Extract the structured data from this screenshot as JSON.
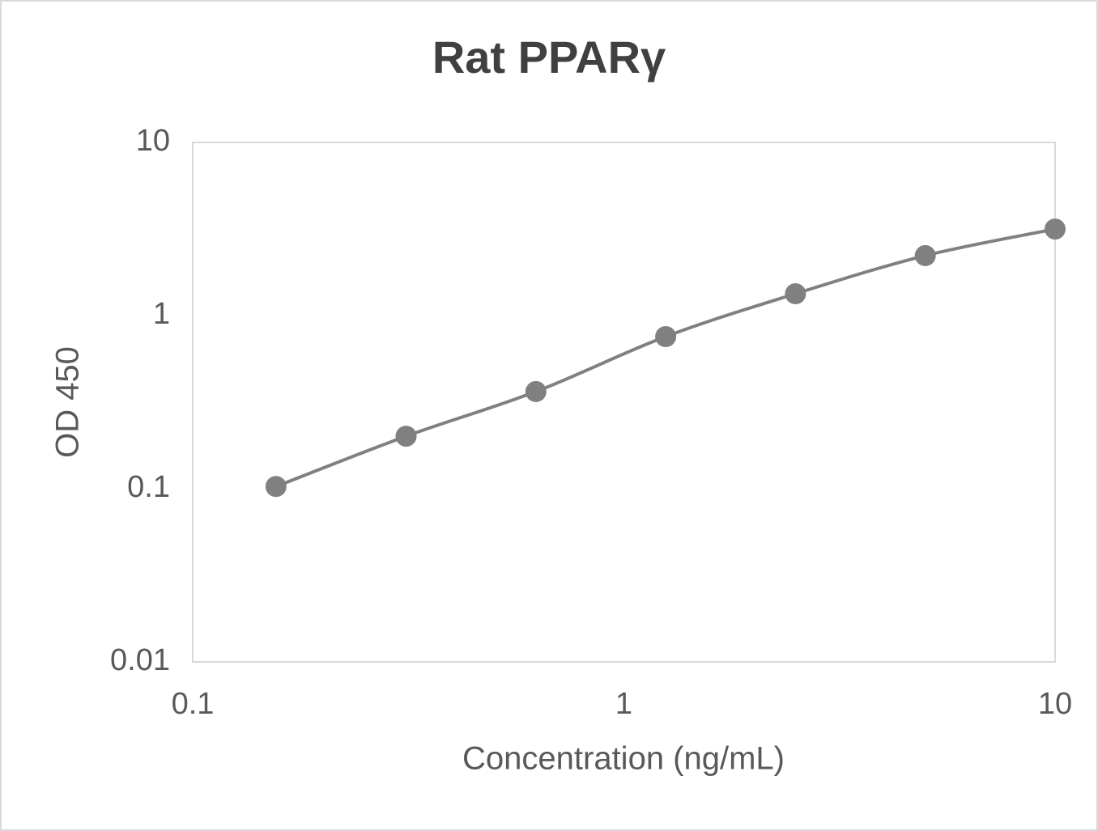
{
  "chart_data": {
    "type": "scatter",
    "title": "Rat PPARγ",
    "x_label": "Concentration (ng/mL)",
    "y_label": "OD 450",
    "x_log": true,
    "y_log": true,
    "smooth_line": true,
    "series": [
      {
        "color": "#808080",
        "x": [
          0.156,
          0.3125,
          0.625,
          1.25,
          2.5,
          5,
          10
        ],
        "values": [
          0.103,
          0.201,
          0.364,
          0.756,
          1.337,
          2.22,
          3.16
        ]
      }
    ],
    "xlim": [
      0.1,
      10
    ],
    "xticks": [
      0.1,
      1,
      10
    ],
    "ylim": [
      0.01,
      10
    ],
    "yticks": [
      0.01,
      0.1,
      1,
      10
    ],
    "grid": false
  }
}
